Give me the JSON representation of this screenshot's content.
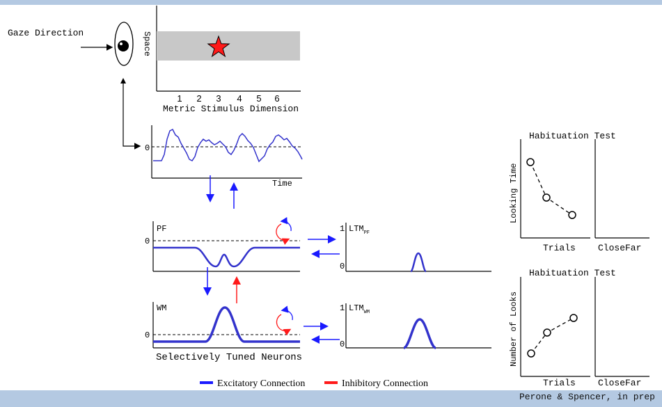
{
  "gaze": {
    "label": "Gaze Direction"
  },
  "stimulus": {
    "axis_label": "Space",
    "ticks": [
      "1",
      "2",
      "3",
      "4",
      "5",
      "6"
    ],
    "dimension_label": "Metric Stimulus Dimension"
  },
  "time_panel": {
    "zero": "0",
    "xlabel": "Time"
  },
  "pf": {
    "label": "PF",
    "zero": "0"
  },
  "wm": {
    "label": "WM",
    "zero": "0"
  },
  "ltm_pf": {
    "label": "LTM",
    "sub": "PF",
    "one": "1",
    "zero": "0"
  },
  "ltm_wm": {
    "label": "LTM",
    "sub": "WM",
    "one": "1",
    "zero": "0"
  },
  "neurons_label": "Selectively Tuned Neurons",
  "legend": {
    "excitatory": "Excitatory Connection",
    "inhibitory": "Inhibitory Connection",
    "excitatory_color": "#1a1aff",
    "inhibitory_color": "#ff1a1a"
  },
  "habituation_top": {
    "title": "Habituation Test",
    "ylabel": "Looking Time",
    "xlabel": "Trials",
    "test_labels": [
      "Close",
      "Far"
    ]
  },
  "habituation_bottom": {
    "title": "Habituation Test",
    "ylabel": "Number of Looks",
    "xlabel": "Trials",
    "test_labels": [
      "Close",
      "Far"
    ]
  },
  "credit": "Perone & Spencer, in prep"
}
